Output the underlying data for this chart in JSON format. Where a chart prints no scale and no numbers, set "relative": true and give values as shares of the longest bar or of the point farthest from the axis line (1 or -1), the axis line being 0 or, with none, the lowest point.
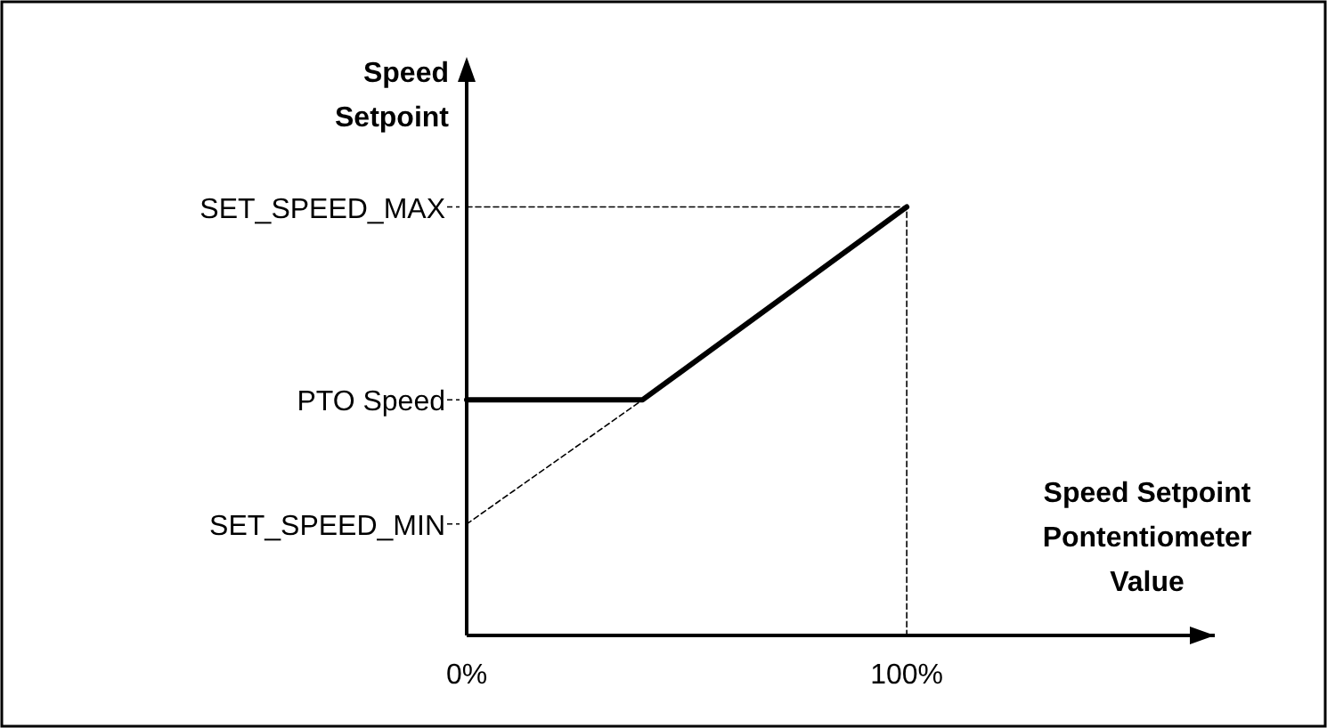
{
  "chart_data": {
    "type": "line",
    "relative": true,
    "xlabel": "Speed Setpoint Pontentiometer Value",
    "ylabel": "Speed Setpoint",
    "xlim": [
      0,
      170
    ],
    "xticks": [
      {
        "value": 0,
        "label": "0%"
      },
      {
        "value": 100,
        "label": "100%"
      }
    ],
    "ref_lines": [
      {
        "axis": "y",
        "value": 1,
        "label": "SET_SPEED_MAX",
        "line_style": "dashed"
      },
      {
        "axis": "y",
        "value": 0.55,
        "label": "PTO Speed",
        "line_style": "dashed"
      },
      {
        "axis": "y",
        "value": 0.26,
        "label": "SET_SPEED_MIN",
        "line_style": "dashed"
      }
    ],
    "series": [
      {
        "color": "#000000",
        "x": [
          0,
          40,
          100
        ],
        "values": [
          0.55,
          0.55,
          1
        ]
      },
      {
        "color": "#000000",
        "line_style": "dashed",
        "x": [
          0,
          100,
          100
        ],
        "values": [
          1,
          1,
          0
        ]
      },
      {
        "color": "#000000",
        "line_style": "dashed",
        "x": [
          0,
          40
        ],
        "values": [
          0.26,
          0.55
        ]
      }
    ]
  }
}
